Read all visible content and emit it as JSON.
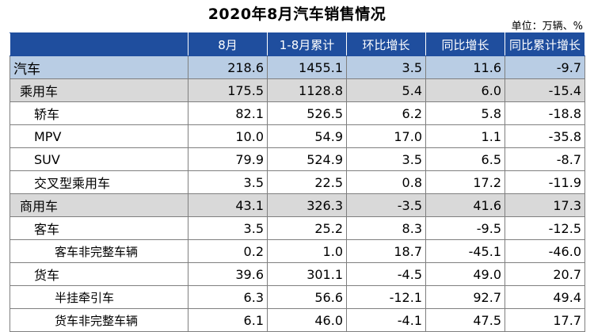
{
  "title": "2020年8月汽车销售情况",
  "unit": "单位：万辆、%",
  "headers": [
    "",
    "8月",
    "1-8月累计",
    "环比增长",
    "同比增长",
    "同比累计增长"
  ],
  "rows": [
    {
      "name": "汽车",
      "level": 0,
      "values": [
        "218.6",
        "1455.1",
        "3.5",
        "11.6",
        "-9.7"
      ]
    },
    {
      "name": "乘用车",
      "level": 1,
      "values": [
        "175.5",
        "1128.8",
        "5.4",
        "6.0",
        "-15.4"
      ]
    },
    {
      "name": "轿车",
      "level": 2,
      "values": [
        "82.1",
        "526.5",
        "6.2",
        "5.8",
        "-18.8"
      ]
    },
    {
      "name": "MPV",
      "level": 2,
      "values": [
        "10.0",
        "54.9",
        "17.0",
        "1.1",
        "-35.8"
      ]
    },
    {
      "name": "SUV",
      "level": 2,
      "values": [
        "79.9",
        "524.9",
        "3.5",
        "6.5",
        "-8.7"
      ]
    },
    {
      "name": "交叉型乘用车",
      "level": 2,
      "values": [
        "3.5",
        "22.5",
        "0.8",
        "17.2",
        "-11.9"
      ]
    },
    {
      "name": "商用车",
      "level": 1,
      "values": [
        "43.1",
        "326.3",
        "-3.5",
        "41.6",
        "17.3"
      ]
    },
    {
      "name": "客车",
      "level": 2,
      "values": [
        "3.5",
        "25.2",
        "8.3",
        "-9.5",
        "-12.5"
      ]
    },
    {
      "name": "客车非完整车辆",
      "level": 3,
      "values": [
        "0.2",
        "1.0",
        "18.7",
        "-45.1",
        "-46.0"
      ]
    },
    {
      "name": "货车",
      "level": 2,
      "values": [
        "39.6",
        "301.1",
        "-4.5",
        "49.0",
        "20.7"
      ]
    },
    {
      "name": "半挂牵引车",
      "level": 3,
      "values": [
        "6.3",
        "56.6",
        "-12.1",
        "92.7",
        "49.4"
      ]
    },
    {
      "name": "货车非完整车辆",
      "level": 3,
      "values": [
        "6.1",
        "46.0",
        "-4.1",
        "47.5",
        "17.7"
      ]
    }
  ]
}
